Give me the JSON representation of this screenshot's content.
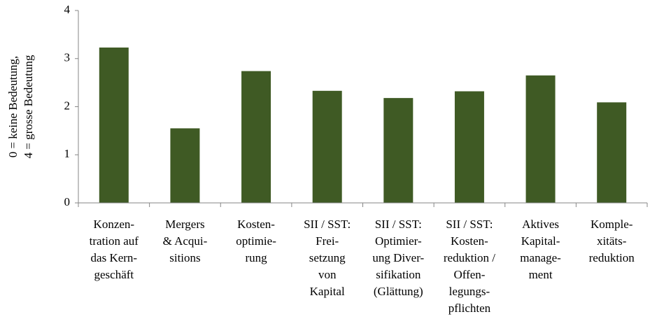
{
  "chart_data": {
    "type": "bar",
    "ylabel": [
      "0 = keine Bedeutung,",
      "4 = grosse Bedeutung"
    ],
    "categories": [
      [
        "Konzen-",
        "tration auf",
        "das Kern-",
        "geschäft"
      ],
      [
        "Mergers",
        "& Acqui-",
        "sitions"
      ],
      [
        "Kosten-",
        "optimie-",
        "rung"
      ],
      [
        "SII / SST:",
        "Frei-",
        "setzung",
        "von",
        "Kapital"
      ],
      [
        "SII / SST:",
        "Optimier-",
        "ung Diver-",
        "sifikation",
        "(Glättung)"
      ],
      [
        "SII / SST:",
        "Kosten-",
        "reduktion /",
        "Offen-",
        "legungs-",
        "pflichten"
      ],
      [
        "Aktives",
        "Kapital-",
        "manage-",
        "ment"
      ],
      [
        "Komple-",
        "xitäts-",
        "reduktion"
      ]
    ],
    "values": [
      3.23,
      1.55,
      2.74,
      2.33,
      2.18,
      2.32,
      2.65,
      2.09
    ],
    "color": "#3f5a24",
    "ylim": [
      0,
      4
    ],
    "yticks": [
      0,
      1,
      2,
      3,
      4
    ],
    "grid": false
  }
}
